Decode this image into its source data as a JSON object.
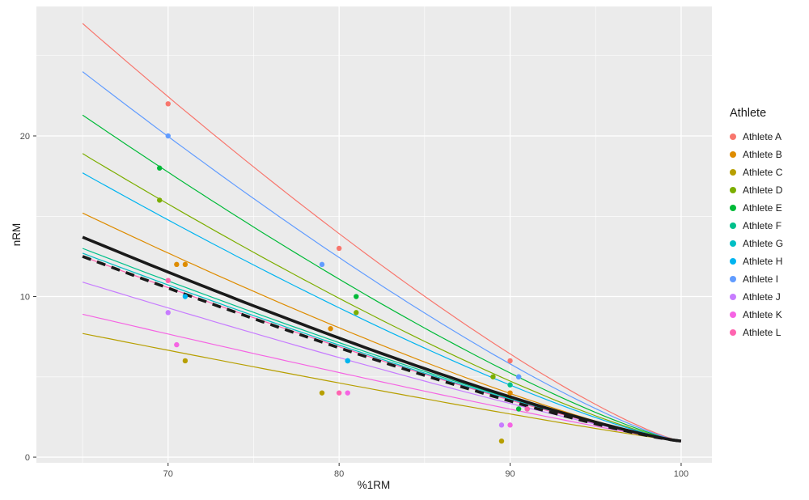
{
  "chart_data": {
    "type": "scatter",
    "title": "",
    "xlabel": "%1RM",
    "ylabel": "nRM",
    "legend_title": "Athlete",
    "legend_position": "right",
    "x_ticks": [
      70,
      80,
      90,
      100
    ],
    "y_ticks": [
      0,
      10,
      20
    ],
    "x_minor": [
      65,
      75,
      85,
      95
    ],
    "y_minor": [
      5,
      15,
      25
    ],
    "xlim": [
      62.3,
      101.8
    ],
    "ylim": [
      -0.35,
      28.06
    ],
    "panel_bg": "#EBEBEB",
    "grid_color": "#FFFFFF",
    "tick_label_color": "#4D4D4D",
    "curve_note": "all curves converge to nRM = 1 at %1RM = 100",
    "series": [
      {
        "name": "Athlete A",
        "color": "#F8766D",
        "curve_y65": 27.0,
        "exponent": 1.25,
        "points": [
          [
            70,
            22
          ],
          [
            80,
            13
          ],
          [
            90,
            6
          ]
        ]
      },
      {
        "name": "Athlete B",
        "color": "#DE8C00",
        "curve_y65": 15.2,
        "exponent": 1.25,
        "points": [
          [
            70.5,
            12
          ],
          [
            71,
            12
          ],
          [
            79.5,
            8
          ],
          [
            90,
            4
          ]
        ]
      },
      {
        "name": "Athlete C",
        "color": "#B79F00",
        "curve_y65": 7.7,
        "exponent": 1.1,
        "points": [
          [
            71,
            6
          ],
          [
            79,
            4
          ],
          [
            89.5,
            1
          ]
        ]
      },
      {
        "name": "Athlete D",
        "color": "#7CAE00",
        "curve_y65": 18.9,
        "exponent": 1.25,
        "points": [
          [
            69.5,
            16
          ],
          [
            81,
            9
          ],
          [
            89,
            5
          ]
        ]
      },
      {
        "name": "Athlete E",
        "color": "#00BA38",
        "curve_y65": 21.3,
        "exponent": 1.25,
        "points": [
          [
            69.5,
            18
          ],
          [
            81,
            10
          ],
          [
            90.5,
            3
          ]
        ]
      },
      {
        "name": "Athlete F",
        "color": "#00C08B",
        "curve_y65": 13.0,
        "exponent": 1.2,
        "points": [
          [
            80.5,
            6
          ],
          [
            90,
            4.5
          ]
        ]
      },
      {
        "name": "Athlete G",
        "color": "#00BFC4",
        "curve_y65": 12.7,
        "exponent": 1.2,
        "points": [
          [
            80.5,
            6
          ],
          [
            91,
            3
          ]
        ]
      },
      {
        "name": "Athlete H",
        "color": "#00B4F0",
        "curve_y65": 17.7,
        "exponent": 1.25,
        "points": [
          [
            71,
            10
          ],
          [
            80.5,
            6
          ],
          [
            90.5,
            5
          ]
        ]
      },
      {
        "name": "Athlete I",
        "color": "#619CFF",
        "curve_y65": 24.0,
        "exponent": 1.25,
        "points": [
          [
            70,
            20
          ],
          [
            79,
            12
          ],
          [
            90.5,
            5
          ]
        ]
      },
      {
        "name": "Athlete J",
        "color": "#C77CFF",
        "curve_y65": 10.9,
        "exponent": 1.15,
        "points": [
          [
            70,
            9
          ],
          [
            89.5,
            2
          ]
        ]
      },
      {
        "name": "Athlete K",
        "color": "#F564E3",
        "curve_y65": 8.9,
        "exponent": 1.1,
        "points": [
          [
            70.5,
            7
          ],
          [
            80.5,
            4
          ],
          [
            90,
            2
          ]
        ]
      },
      {
        "name": "Athlete L",
        "color": "#FF64B0",
        "curve_y65": 12.5,
        "exponent": 1.2,
        "points": [
          [
            70,
            11
          ],
          [
            80,
            4
          ],
          [
            91,
            3
          ]
        ]
      }
    ],
    "overlay_curves": [
      {
        "style": "solid",
        "color": "#1A1A1A",
        "curve_y65": 13.7,
        "exponent": 1.22,
        "width": 3.6
      },
      {
        "style": "dashed",
        "color": "#1A1A1A",
        "curve_y65": 12.5,
        "exponent": 1.22,
        "width": 3.6,
        "dash": "11 8"
      }
    ]
  }
}
